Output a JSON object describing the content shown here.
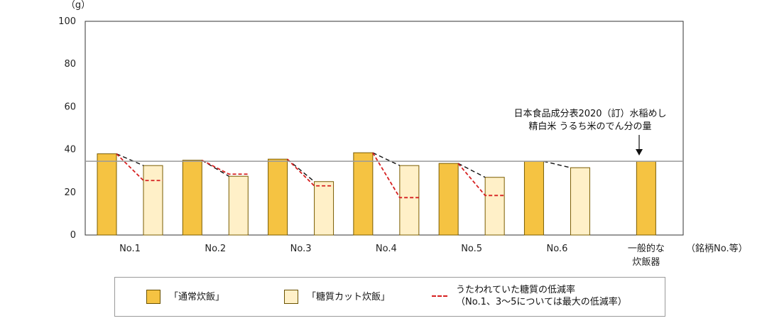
{
  "chart_data": {
    "type": "bar",
    "yunit": "（g）",
    "xunit": "（銘柄No.等）",
    "ylim": [
      0,
      100
    ],
    "yticks": [
      0,
      20,
      40,
      60,
      80,
      100
    ],
    "categories": [
      "No.1",
      "No.2",
      "No.3",
      "No.4",
      "No.5",
      "No.6",
      "一般的な\n炊飯器"
    ],
    "series": [
      {
        "name": "「通常炊飯」",
        "color": "#f5c342",
        "values": [
          38,
          35,
          35.5,
          38.5,
          33.5,
          34.5,
          34.5
        ]
      },
      {
        "name": "「糖質カット炊飯」",
        "color": "#fff0c8",
        "values": [
          32.5,
          27.5,
          25,
          32.5,
          27,
          31.5,
          null
        ]
      }
    ],
    "claimed_reduction": {
      "name": "うたわれていた糖質の低減率",
      "name_line2": "（No.1、3～5については最大の低減率）",
      "color": "#d62020",
      "values": [
        25.5,
        28.5,
        23,
        17.5,
        18.5,
        null,
        null
      ]
    },
    "reference_line": {
      "value": 34.5,
      "label_line1": "日本食品成分表2020（訂）水稲めし",
      "label_line2": "精白米 うるち米のでん分の量"
    },
    "grid": false,
    "legend_position": "bottom"
  }
}
